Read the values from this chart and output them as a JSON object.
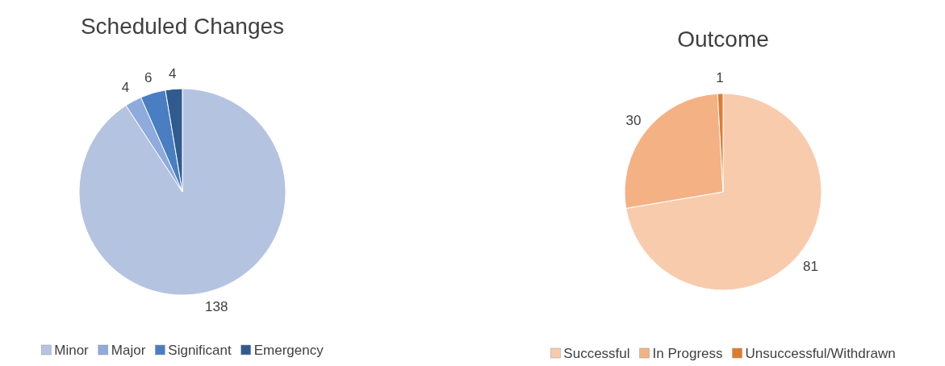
{
  "chart_data": [
    {
      "type": "pie",
      "title": "Scheduled Changes",
      "categories": [
        "Minor",
        "Major",
        "Significant",
        "Emergency"
      ],
      "values": [
        138,
        4,
        6,
        4
      ],
      "colors": [
        "#b4c3e0",
        "#8faadc",
        "#4a7ec2",
        "#2f5b8f"
      ],
      "data_labels": true,
      "legend": "bottom"
    },
    {
      "type": "pie",
      "title": "Outcome",
      "categories": [
        "Successful",
        "In Progress",
        "Unsuccessful/Withdrawn"
      ],
      "values": [
        81,
        30,
        1
      ],
      "colors": [
        "#f8cbad",
        "#f4b183",
        "#e07b2e"
      ],
      "data_labels": true,
      "legend": "bottom"
    }
  ]
}
